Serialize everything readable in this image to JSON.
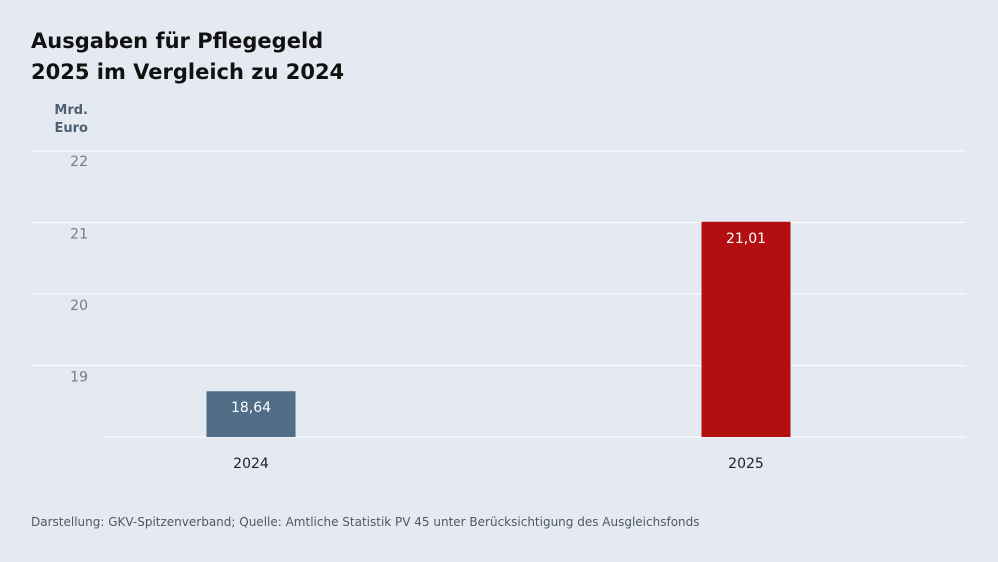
{
  "title_lines": [
    "Ausgaben für Pflegegeld",
    "2025 im Vergleich zu 2024"
  ],
  "unit_lines": [
    "Mrd.",
    "Euro"
  ],
  "source": "Darstellung: GKV-Spitzenverband; Quelle: Amtliche Statistik PV 45 unter Berücksichtigung des Ausgleichsfonds",
  "colors": {
    "background": "#e5eaf2",
    "bar_2024": "#506e87",
    "bar_2025": "#b30f10",
    "grid": "#ffffff",
    "tick_text": "#6f7c8a",
    "label_text": "#222222"
  },
  "chart_data": {
    "type": "bar",
    "categories": [
      "2024",
      "2025"
    ],
    "values": [
      18.64,
      21.01
    ],
    "value_labels": [
      "18,64",
      "21,01"
    ],
    "ylim": [
      18,
      22
    ],
    "yticks": [
      19,
      20,
      21,
      22
    ],
    "ytick_labels": [
      "19",
      "20",
      "21",
      "22"
    ],
    "grid": true,
    "bar_colors": [
      "#506e87",
      "#b30f10"
    ]
  }
}
